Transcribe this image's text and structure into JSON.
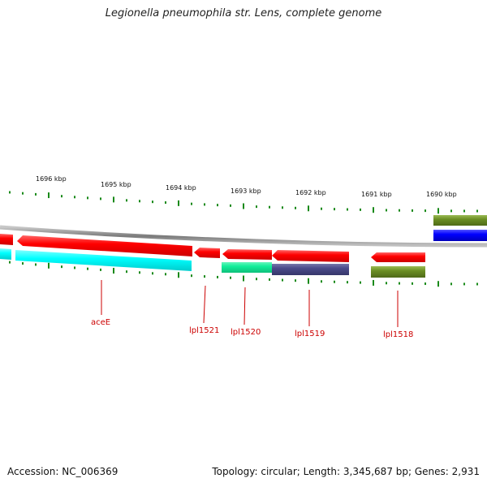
{
  "title": "Legionella pneumophila str. Lens, complete genome",
  "kbp_labels": [
    "1696 kbp",
    "1695 kbp",
    "1694 kbp",
    "1693 kbp",
    "1692 kbp",
    "1691 kbp",
    "1690 kbp"
  ],
  "gene_labels": [
    "aceE",
    "lpl1521",
    "lpl1520",
    "lpl1519",
    "lpl1518"
  ],
  "footer": {
    "accession": "Accession: NC_006369",
    "info": "Topology: circular; Length: 3,345,687 bp; Genes: 2,931"
  },
  "colors": {
    "backbone": "#8a8a8a",
    "forward_strand": "#ff0000",
    "cyan": "#00ffff",
    "teal": "#11ee99",
    "purple": "#4a4a8a",
    "olive": "#6b8e23",
    "blue": "#0000ff",
    "tick": "#1a8a1a",
    "label": "#cc0000"
  }
}
